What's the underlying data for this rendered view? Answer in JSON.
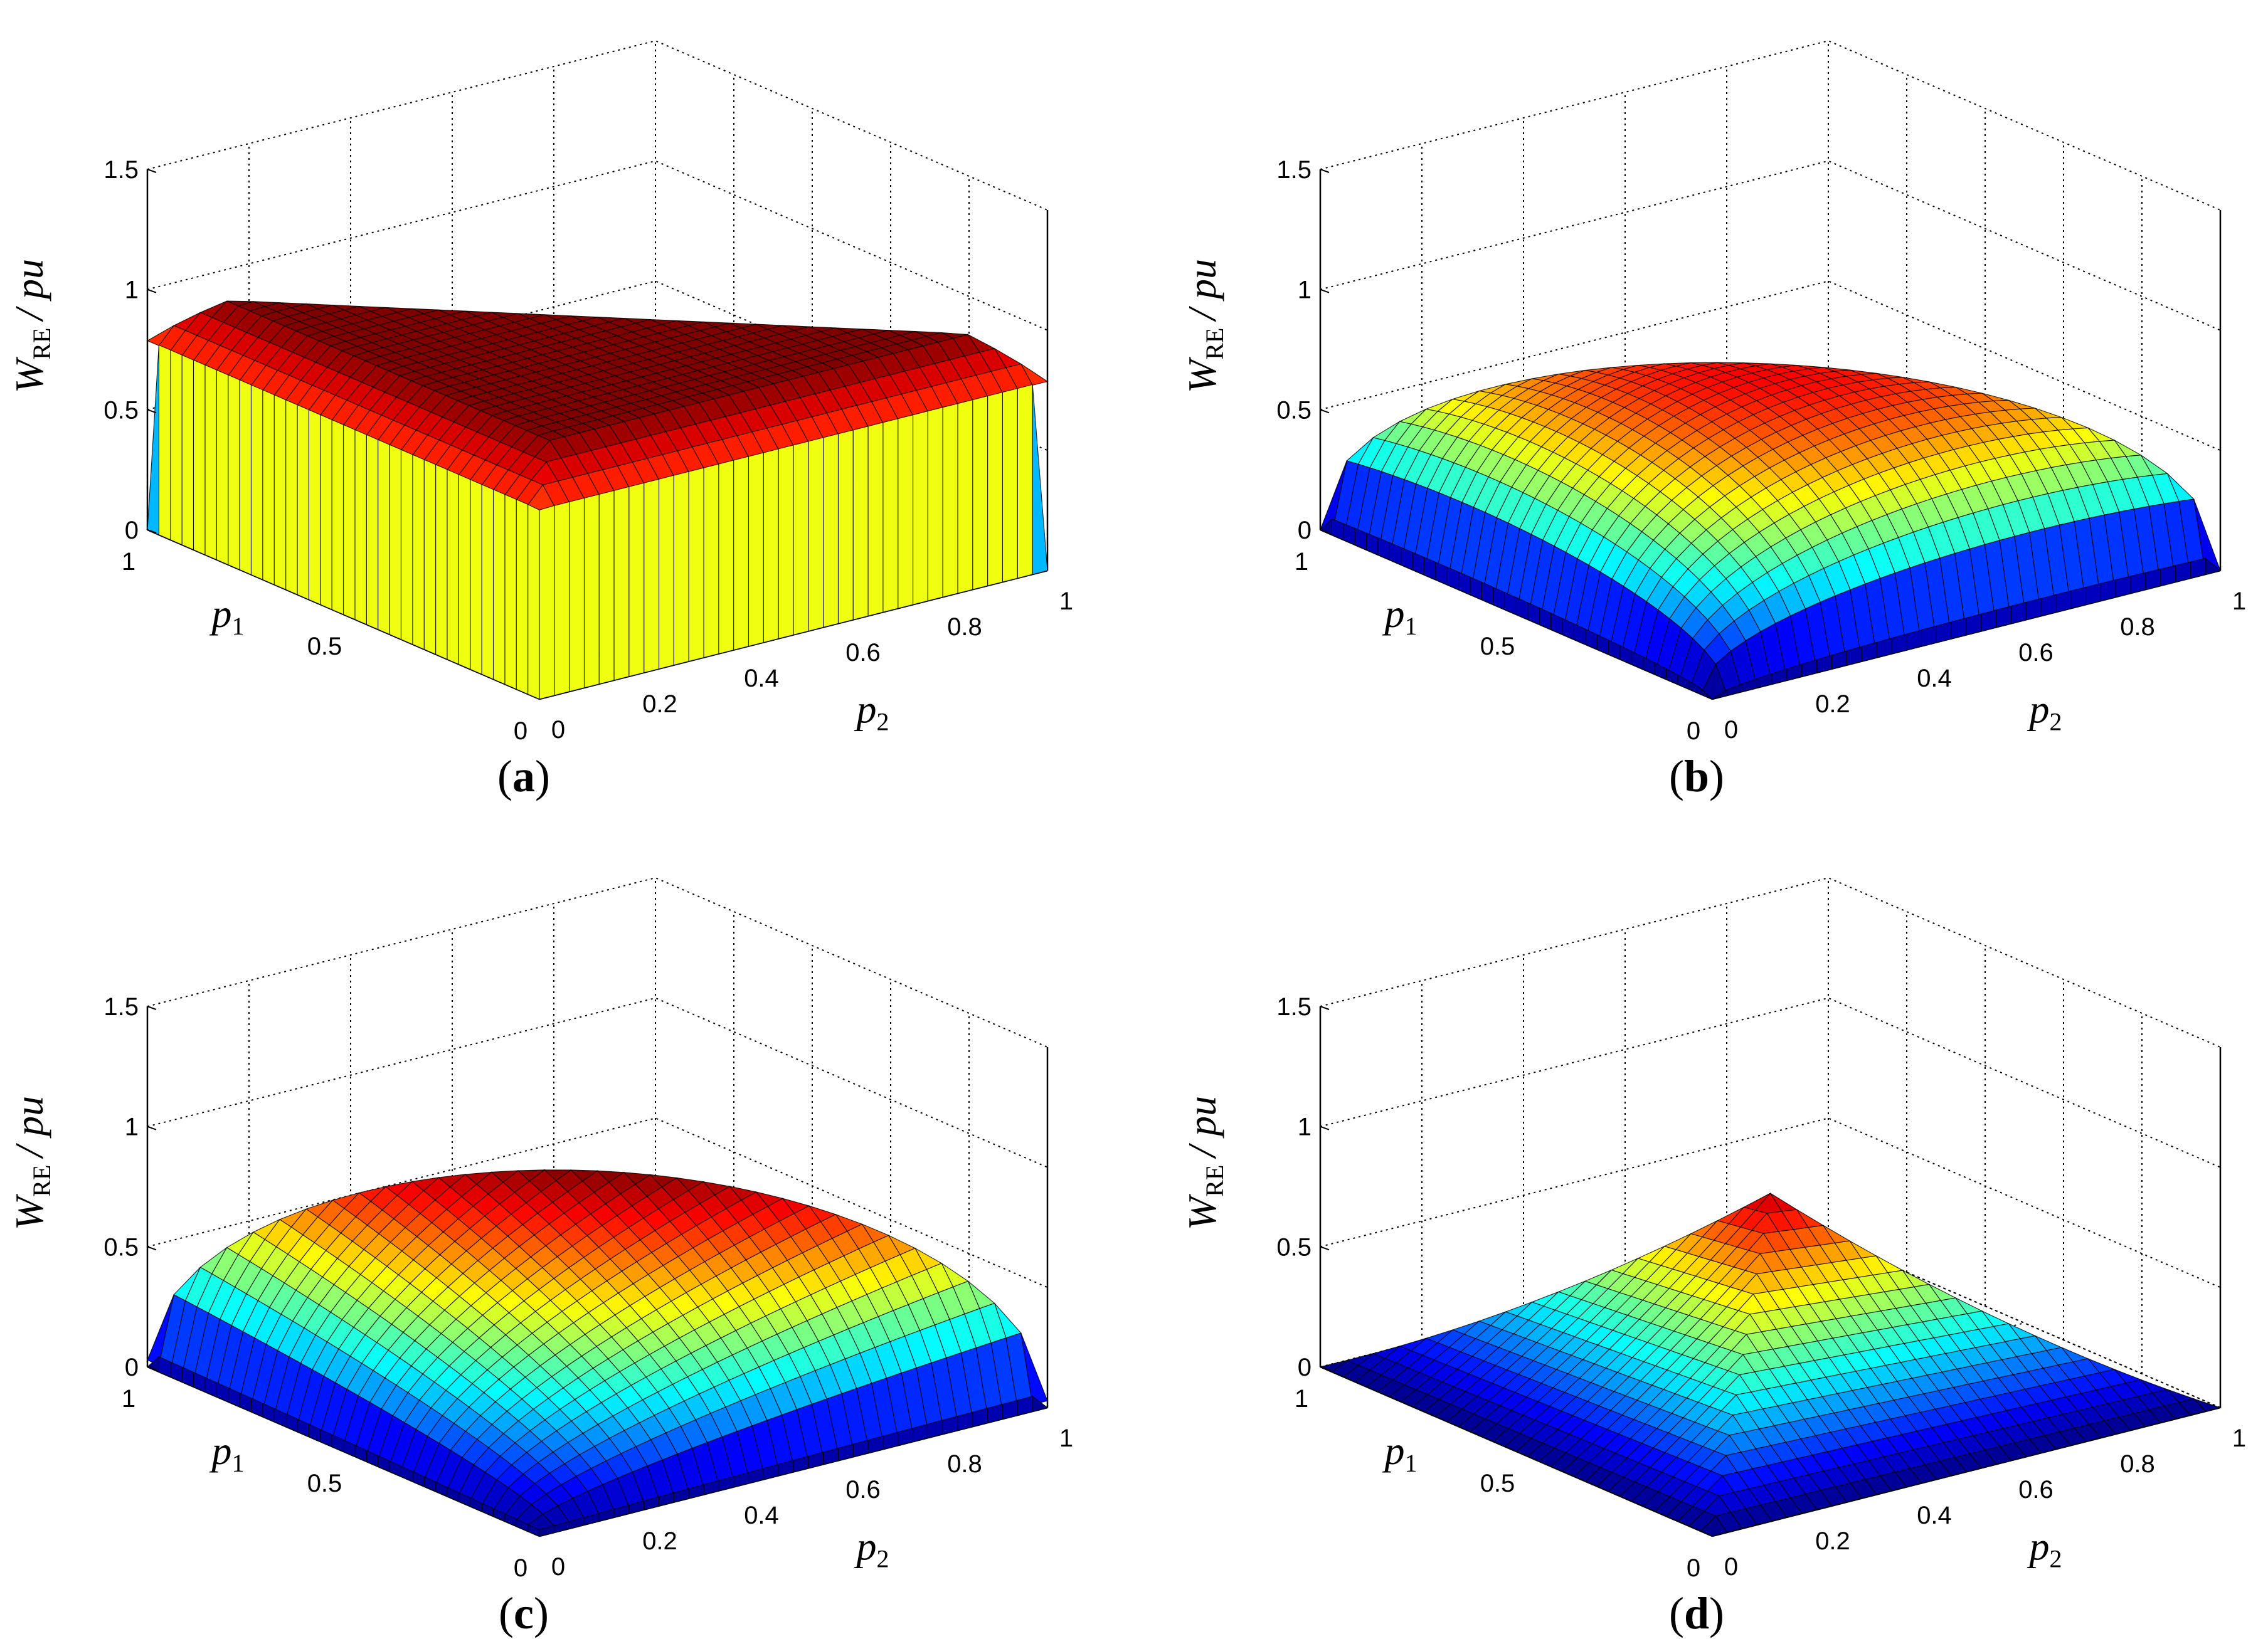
{
  "chart_data": [
    {
      "panel": "a",
      "caption_letter": "a",
      "type": "surface",
      "zlabel_main": "W",
      "zlabel_sub": "RE",
      "zlabel_unit": "/ pu",
      "xlabel_main": "p",
      "xlabel_sub": "1",
      "ylabel_main": "p",
      "ylabel_sub": "2",
      "zlim": [
        0,
        1.5
      ],
      "p1lim": [
        0,
        1
      ],
      "p2lim": [
        0,
        1
      ],
      "z_ticks": [
        "0",
        "0.5",
        "1",
        "1.5"
      ],
      "p1_ticks": [
        "0",
        "0.5",
        "1"
      ],
      "p2_ticks": [
        "0",
        "0.2",
        "0.4",
        "0.6",
        "0.8",
        "1"
      ],
      "grid": true,
      "peak": 0.97,
      "shape": "flat",
      "colormap": "jet"
    },
    {
      "panel": "b",
      "caption_letter": "b",
      "type": "surface",
      "zlabel_main": "W",
      "zlabel_sub": "RE",
      "zlabel_unit": "/ pu",
      "xlabel_main": "p",
      "xlabel_sub": "1",
      "ylabel_main": "p",
      "ylabel_sub": "2",
      "zlim": [
        0,
        1.5
      ],
      "p1lim": [
        0,
        1
      ],
      "p2lim": [
        0,
        1
      ],
      "z_ticks": [
        "0",
        "0.5",
        "1",
        "1.5"
      ],
      "p1_ticks": [
        "0",
        "0.5",
        "1"
      ],
      "p2_ticks": [
        "0",
        "0.2",
        "0.4",
        "0.6",
        "0.8",
        "1"
      ],
      "grid": true,
      "peak": 0.9,
      "shape": "round",
      "colormap": "jet"
    },
    {
      "panel": "c",
      "caption_letter": "c",
      "type": "surface",
      "zlabel_main": "W",
      "zlabel_sub": "RE",
      "zlabel_unit": "/ pu",
      "xlabel_main": "p",
      "xlabel_sub": "1",
      "ylabel_main": "p",
      "ylabel_sub": "2",
      "zlim": [
        0,
        1.5
      ],
      "p1lim": [
        0,
        1
      ],
      "p2lim": [
        0,
        1
      ],
      "z_ticks": [
        "0",
        "0.5",
        "1",
        "1.5"
      ],
      "p1_ticks": [
        "0",
        "0.5",
        "1"
      ],
      "p2_ticks": [
        "0",
        "0.2",
        "0.4",
        "0.6",
        "0.8",
        "1"
      ],
      "grid": true,
      "peak": 0.9,
      "shape": "dome",
      "colormap": "jet"
    },
    {
      "panel": "d",
      "caption_letter": "d",
      "type": "surface",
      "zlabel_main": "W",
      "zlabel_sub": "RE",
      "zlabel_unit": "/ pu",
      "xlabel_main": "p",
      "xlabel_sub": "1",
      "ylabel_main": "p",
      "ylabel_sub": "2",
      "zlim": [
        0,
        1.5
      ],
      "p1lim": [
        0,
        1
      ],
      "p2lim": [
        0,
        1
      ],
      "z_ticks": [
        "0",
        "0.5",
        "1",
        "1.5"
      ],
      "p1_ticks": [
        "0",
        "0.5",
        "1"
      ],
      "p2_ticks": [
        "0",
        "0.2",
        "0.4",
        "0.6",
        "0.8",
        "1"
      ],
      "grid": true,
      "peak": 0.85,
      "shape": "pyramid",
      "colormap": "jet"
    }
  ]
}
